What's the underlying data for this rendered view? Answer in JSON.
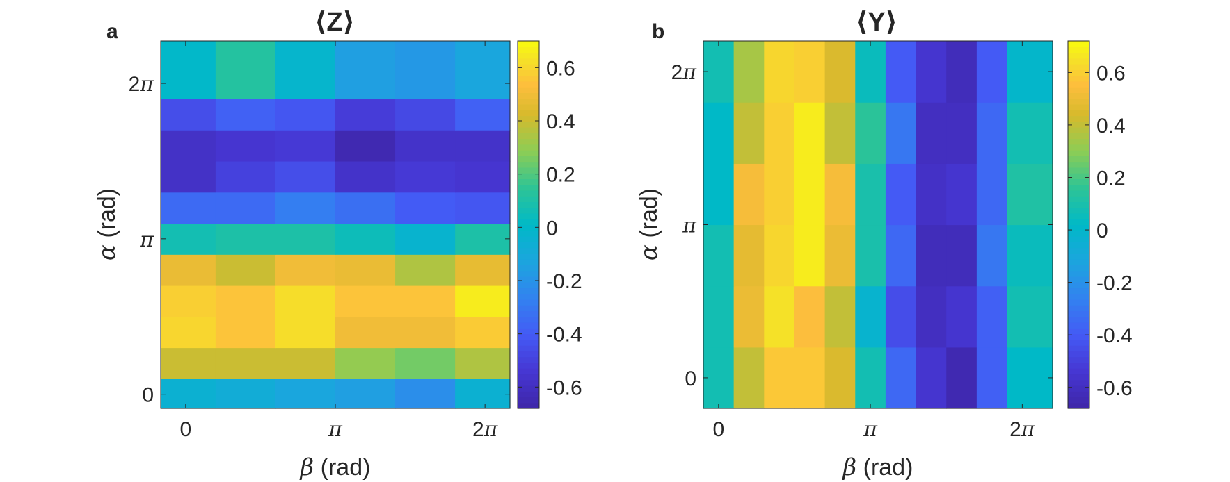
{
  "figure": {
    "panels": [
      "a",
      "b"
    ]
  },
  "chart_data": [
    {
      "type": "heatmap",
      "panel_label": "a",
      "title": "⟨Z⟩",
      "xlabel_symbol": "β",
      "xlabel_unit": " (rad)",
      "ylabel_symbol": "α",
      "ylabel_unit": " (rad)",
      "xlim": [
        -0.5236,
        6.8068
      ],
      "ylim": [
        -0.2856,
        7.14
      ],
      "x_centers": [
        0,
        1.2566,
        2.5133,
        3.7699,
        5.0265,
        6.2832
      ],
      "y_centers": [
        0,
        0.6283,
        1.2566,
        1.885,
        2.5133,
        3.1416,
        3.7699,
        4.3982,
        5.0265,
        5.6549,
        6.2832
      ],
      "xticks": [
        0,
        3.1416,
        6.2832
      ],
      "xtick_labels": [
        "0",
        "π",
        "2π"
      ],
      "yticks": [
        0,
        3.1416,
        6.2832
      ],
      "ytick_labels": [
        "0",
        "π",
        "2π"
      ],
      "clim": [
        -0.68,
        0.7
      ],
      "colorbar_ticks": [
        -0.6,
        -0.4,
        -0.2,
        0,
        0.2,
        0.4,
        0.6
      ],
      "colorbar_tick_labels": [
        "-0.6",
        "-0.4",
        "-0.2",
        "0",
        "0.2",
        "0.4",
        "0.6"
      ],
      "values": [
        [
          -0.05,
          -0.08,
          -0.12,
          -0.15,
          -0.22,
          -0.05
        ],
        [
          0.4,
          0.4,
          0.4,
          0.3,
          0.25,
          0.35
        ],
        [
          0.6,
          0.55,
          0.62,
          0.5,
          0.5,
          0.57
        ],
        [
          0.58,
          0.55,
          0.62,
          0.55,
          0.55,
          0.66
        ],
        [
          0.48,
          0.4,
          0.5,
          0.48,
          0.35,
          0.47
        ],
        [
          0.07,
          0.1,
          0.1,
          0.05,
          -0.03,
          0.1
        ],
        [
          -0.35,
          -0.35,
          -0.28,
          -0.33,
          -0.4,
          -0.42
        ],
        [
          -0.58,
          -0.5,
          -0.45,
          -0.57,
          -0.53,
          -0.55
        ],
        [
          -0.58,
          -0.55,
          -0.53,
          -0.65,
          -0.57,
          -0.57
        ],
        [
          -0.45,
          -0.38,
          -0.42,
          -0.52,
          -0.47,
          -0.38
        ],
        [
          0.0,
          0.12,
          -0.02,
          -0.15,
          -0.18,
          -0.12
        ]
      ]
    },
    {
      "type": "heatmap",
      "panel_label": "b",
      "title": "⟨Y⟩",
      "xlabel_symbol": "β",
      "xlabel_unit": " (rad)",
      "ylabel_symbol": "α",
      "ylabel_unit": " (rad)",
      "xlim": [
        -0.3142,
        6.9115
      ],
      "ylim": [
        -0.6283,
        6.9115
      ],
      "x_centers": [
        0,
        0.6283,
        1.2566,
        1.885,
        2.5133,
        3.1416,
        3.7699,
        4.3982,
        5.0265,
        5.6549,
        6.2832
      ],
      "y_centers": [
        0,
        1.2566,
        2.5133,
        3.7699,
        5.0265,
        6.2832
      ],
      "xticks": [
        0,
        3.1416,
        6.2832
      ],
      "xtick_labels": [
        "0",
        "π",
        "2π"
      ],
      "yticks": [
        0,
        3.1416,
        6.2832
      ],
      "ytick_labels": [
        "0",
        "π",
        "2π"
      ],
      "clim": [
        -0.68,
        0.72
      ],
      "colorbar_ticks": [
        -0.6,
        -0.4,
        -0.2,
        0,
        0.2,
        0.4,
        0.6
      ],
      "colorbar_tick_labels": [
        "-0.6",
        "-0.4",
        "-0.2",
        "0",
        "0.2",
        "0.4",
        "0.6"
      ],
      "values": [
        [
          0.08,
          0.4,
          0.58,
          0.58,
          0.45,
          0.08,
          -0.35,
          -0.55,
          -0.65,
          -0.38,
          0.02
        ],
        [
          0.08,
          0.5,
          0.65,
          0.55,
          0.4,
          -0.02,
          -0.45,
          -0.6,
          -0.55,
          -0.38,
          0.08
        ],
        [
          0.08,
          0.48,
          0.62,
          0.68,
          0.5,
          0.1,
          -0.35,
          -0.62,
          -0.62,
          -0.3,
          0.05
        ],
        [
          0.02,
          0.53,
          0.6,
          0.68,
          0.53,
          0.1,
          -0.4,
          -0.58,
          -0.55,
          -0.35,
          0.12
        ],
        [
          0.02,
          0.4,
          0.6,
          0.68,
          0.4,
          0.15,
          -0.3,
          -0.6,
          -0.6,
          -0.35,
          0.08
        ],
        [
          0.08,
          0.35,
          0.62,
          0.6,
          0.45,
          0.05,
          -0.4,
          -0.55,
          -0.62,
          -0.4,
          0.0
        ]
      ]
    }
  ]
}
